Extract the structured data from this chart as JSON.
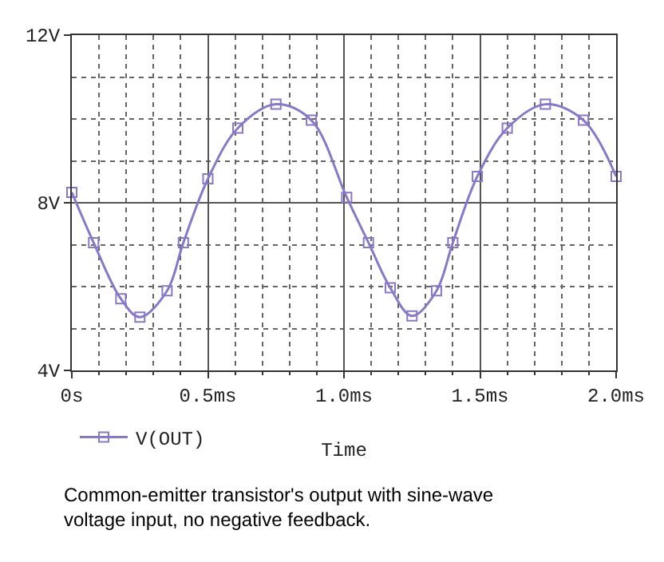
{
  "chart_data": {
    "type": "line",
    "xlabel": "Time",
    "x": [
      0,
      0.08,
      0.18,
      0.25,
      0.35,
      0.41,
      0.5,
      0.61,
      0.75,
      0.88,
      1.01,
      1.09,
      1.17,
      1.25,
      1.34,
      1.4,
      1.49,
      1.6,
      1.74,
      1.88,
      2.0
    ],
    "series": [
      {
        "name": "V(OUT)",
        "color": "#8878c8",
        "values": [
          8.25,
          7.05,
          5.71,
          5.27,
          5.9,
          7.05,
          8.57,
          9.78,
          10.35,
          9.97,
          8.13,
          7.05,
          5.97,
          5.3,
          5.9,
          7.05,
          8.63,
          9.78,
          10.35,
          9.97,
          8.63
        ]
      }
    ],
    "xlim": [
      0,
      2.0
    ],
    "xticks": [
      {
        "value": 0,
        "label": "0s"
      },
      {
        "value": 0.5,
        "label": "0.5ms"
      },
      {
        "value": 1.0,
        "label": "1.0ms"
      },
      {
        "value": 1.5,
        "label": "1.5ms"
      },
      {
        "value": 2.0,
        "label": "2.0ms"
      }
    ],
    "ylim": [
      4,
      12
    ],
    "yticks": [
      {
        "value": 4,
        "label": "4V"
      },
      {
        "value": 8,
        "label": "8V"
      },
      {
        "value": 12,
        "label": "12V"
      }
    ],
    "grid": true,
    "legend": "bottom left",
    "marker": "square",
    "line_style": "solid",
    "annotations": [
      "Common-emitter transistor's output with sine-wave voltage input, no negative feedback."
    ]
  }
}
